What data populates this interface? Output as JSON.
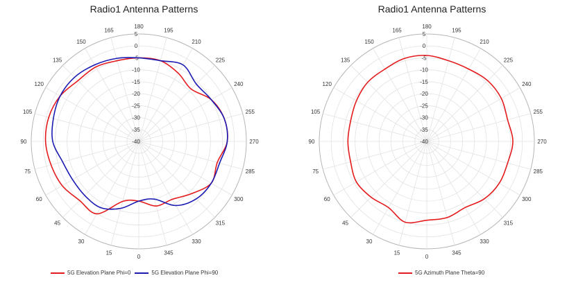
{
  "chart_data": [
    {
      "type": "polar-line",
      "title": "Radio1 Antenna Patterns",
      "r_ticks": [
        "5",
        "0",
        "-5",
        "-10",
        "-15",
        "-20",
        "-25",
        "-30",
        "-35",
        "-40"
      ],
      "rlim": [
        -40,
        5
      ],
      "angle_ticks": [
        "0",
        "15",
        "30",
        "45",
        "60",
        "75",
        "90",
        "105",
        "120",
        "135",
        "150",
        "165",
        "180",
        "195",
        "210",
        "225",
        "240",
        "255",
        "270",
        "285",
        "300",
        "315",
        "330",
        "345"
      ],
      "zero_direction": "bottom",
      "grid": true,
      "legend_position": "bottom",
      "series": [
        {
          "name": "5G Elevation Plane Phi=0",
          "color": "#e41a1c",
          "angles": [
            0,
            15,
            30,
            45,
            60,
            75,
            90,
            105,
            120,
            135,
            150,
            165,
            180,
            195,
            210,
            225,
            240,
            255,
            270,
            285,
            300,
            315,
            330,
            345
          ],
          "values": [
            -15,
            -14,
            -5,
            -5,
            -3,
            -2,
            -1,
            -1,
            -2,
            -4,
            -4,
            -5,
            -5,
            -5,
            -7,
            -9,
            -5,
            -3,
            -3,
            -6,
            -5,
            -9,
            -12,
            -12
          ]
        },
        {
          "name": "5G Elevation Plane Phi=90",
          "color": "#1a1ab3",
          "angles": [
            0,
            15,
            30,
            45,
            60,
            75,
            90,
            105,
            120,
            135,
            150,
            165,
            180,
            195,
            210,
            225,
            240,
            255,
            270,
            285,
            300,
            315,
            330,
            345
          ],
          "values": [
            -15,
            -11,
            -8,
            -8,
            -8,
            -7,
            -4,
            -3,
            -2,
            -2,
            -3,
            -4,
            -5,
            -5,
            -3,
            -6,
            -5,
            -3,
            -3,
            -5,
            -5,
            -6,
            -9,
            -15
          ]
        }
      ]
    },
    {
      "type": "polar-line",
      "title": "Radio1 Antenna Patterns",
      "r_ticks": [
        "5",
        "0",
        "-5",
        "-10",
        "-15",
        "-20",
        "-25",
        "-30",
        "-35",
        "-40"
      ],
      "rlim": [
        -40,
        5
      ],
      "angle_ticks": [
        "0",
        "15",
        "30",
        "45",
        "60",
        "75",
        "90",
        "105",
        "120",
        "135",
        "150",
        "165",
        "180",
        "195",
        "210",
        "225",
        "240",
        "255",
        "270",
        "285",
        "300",
        "315",
        "330",
        "345"
      ],
      "zero_direction": "bottom",
      "grid": true,
      "legend_position": "bottom",
      "series": [
        {
          "name": "5G Azimuth Plane Theta=90",
          "color": "#e41a1c",
          "angles": [
            0,
            15,
            30,
            45,
            60,
            75,
            90,
            105,
            120,
            135,
            150,
            165,
            180,
            195,
            210,
            225,
            240,
            255,
            270,
            285,
            300,
            315,
            330,
            345
          ],
          "values": [
            -7,
            -5,
            -8,
            -7,
            -6,
            -7,
            -7,
            -7,
            -6,
            -5,
            -5,
            -4,
            -4,
            -5,
            -5,
            -4,
            -4,
            -5,
            -4,
            -5,
            -5,
            -6,
            -8,
            -7
          ]
        }
      ]
    }
  ]
}
